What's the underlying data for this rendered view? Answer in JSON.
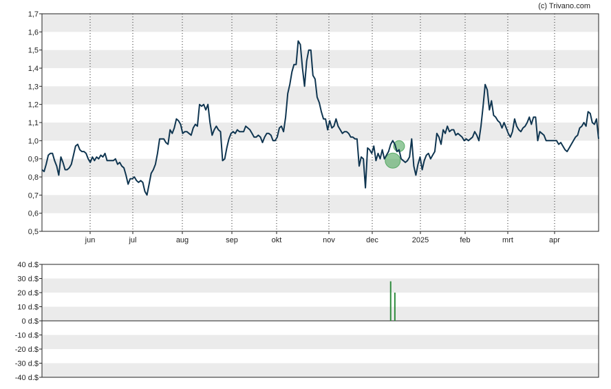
{
  "credit": "(c) Trivano.com",
  "colors": {
    "band": "#ebebeb",
    "line": "#0f3550",
    "marker": "#3f9e4f",
    "volume": "#2e8b3d",
    "axis": "#222222"
  },
  "chart_data": [
    {
      "type": "line",
      "x_tick_labels": [
        "jun",
        "jul",
        "aug",
        "sep",
        "okt",
        "nov",
        "dec",
        "2025",
        "feb",
        "mrt",
        "apr"
      ],
      "y_tick_labels": [
        "0,5",
        "0,6",
        "0,7",
        "0,8",
        "0,9",
        "1,0",
        "1,1",
        "1,2",
        "1,3",
        "1,4",
        "1,5",
        "1,6",
        "1,7"
      ],
      "ylim": [
        0.5,
        1.7
      ],
      "grid": "alternating horizontal bands, dotted vertical month lines",
      "markers": [
        {
          "x": 167,
          "y": 0.89,
          "size": "large"
        },
        {
          "x": 170,
          "y": 0.97,
          "size": "small"
        }
      ],
      "series": [
        {
          "values": [
            [
              0,
              0.84
            ],
            [
              1,
              0.83
            ],
            [
              2,
              0.87
            ],
            [
              3,
              0.92
            ],
            [
              4,
              0.93
            ],
            [
              5,
              0.93
            ],
            [
              6,
              0.89
            ],
            [
              7,
              0.86
            ],
            [
              8,
              0.81
            ],
            [
              9,
              0.91
            ],
            [
              10,
              0.88
            ],
            [
              11,
              0.84
            ],
            [
              12,
              0.84
            ],
            [
              13,
              0.85
            ],
            [
              14,
              0.87
            ],
            [
              15,
              0.92
            ],
            [
              16,
              0.97
            ],
            [
              17,
              0.98
            ],
            [
              18,
              0.95
            ],
            [
              19,
              0.94
            ],
            [
              20,
              0.94
            ],
            [
              21,
              0.93
            ],
            [
              22,
              0.9
            ],
            [
              23,
              0.88
            ],
            [
              24,
              0.91
            ],
            [
              25,
              0.89
            ],
            [
              26,
              0.91
            ],
            [
              27,
              0.9
            ],
            [
              28,
              0.92
            ],
            [
              29,
              0.91
            ],
            [
              30,
              0.93
            ],
            [
              31,
              0.89
            ],
            [
              32,
              0.89
            ],
            [
              33,
              0.89
            ],
            [
              34,
              0.89
            ],
            [
              35,
              0.9
            ],
            [
              36,
              0.87
            ],
            [
              37,
              0.88
            ],
            [
              38,
              0.86
            ],
            [
              39,
              0.85
            ],
            [
              40,
              0.81
            ],
            [
              41,
              0.76
            ],
            [
              42,
              0.79
            ],
            [
              43,
              0.79
            ],
            [
              44,
              0.8
            ],
            [
              45,
              0.78
            ],
            [
              46,
              0.77
            ],
            [
              47,
              0.78
            ],
            [
              48,
              0.77
            ],
            [
              49,
              0.72
            ],
            [
              50,
              0.7
            ],
            [
              51,
              0.76
            ],
            [
              52,
              0.82
            ],
            [
              53,
              0.84
            ],
            [
              54,
              0.87
            ],
            [
              55,
              0.93
            ],
            [
              56,
              1.01
            ],
            [
              57,
              1.01
            ],
            [
              58,
              1.01
            ],
            [
              59,
              0.99
            ],
            [
              60,
              0.98
            ],
            [
              61,
              1.06
            ],
            [
              62,
              1.04
            ],
            [
              63,
              1.07
            ],
            [
              64,
              1.12
            ],
            [
              65,
              1.11
            ],
            [
              66,
              1.09
            ],
            [
              67,
              1.04
            ],
            [
              68,
              1.05
            ],
            [
              69,
              1.05
            ],
            [
              70,
              1.04
            ],
            [
              71,
              1.03
            ],
            [
              72,
              1.07
            ],
            [
              73,
              1.09
            ],
            [
              74,
              1.08
            ],
            [
              75,
              1.2
            ],
            [
              76,
              1.19
            ],
            [
              77,
              1.2
            ],
            [
              78,
              1.17
            ],
            [
              79,
              1.2
            ],
            [
              80,
              1.1
            ],
            [
              81,
              1.03
            ],
            [
              82,
              1.06
            ],
            [
              83,
              1.08
            ],
            [
              84,
              1.06
            ],
            [
              85,
              1.05
            ],
            [
              86,
              0.89
            ],
            [
              87,
              0.9
            ],
            [
              88,
              0.96
            ],
            [
              89,
              1.01
            ],
            [
              90,
              1.04
            ],
            [
              91,
              1.05
            ],
            [
              92,
              1.04
            ],
            [
              93,
              1.06
            ],
            [
              94,
              1.05
            ],
            [
              95,
              1.05
            ],
            [
              96,
              1.05
            ],
            [
              97,
              1.08
            ],
            [
              98,
              1.07
            ],
            [
              99,
              1.06
            ],
            [
              100,
              1.04
            ],
            [
              101,
              1.02
            ],
            [
              102,
              1.02
            ],
            [
              103,
              1.03
            ],
            [
              104,
              1.02
            ],
            [
              105,
              0.99
            ],
            [
              106,
              1.02
            ],
            [
              107,
              1.04
            ],
            [
              108,
              1.04
            ],
            [
              109,
              1.03
            ],
            [
              110,
              1.0
            ],
            [
              111,
              1.0
            ],
            [
              112,
              1.02
            ],
            [
              113,
              1.07
            ],
            [
              114,
              1.08
            ],
            [
              115,
              1.05
            ],
            [
              116,
              1.13
            ],
            [
              117,
              1.26
            ],
            [
              118,
              1.31
            ],
            [
              119,
              1.38
            ],
            [
              120,
              1.42
            ],
            [
              121,
              1.42
            ],
            [
              122,
              1.55
            ],
            [
              123,
              1.53
            ],
            [
              124,
              1.4
            ],
            [
              125,
              1.3
            ],
            [
              126,
              1.44
            ],
            [
              127,
              1.5
            ],
            [
              128,
              1.5
            ],
            [
              129,
              1.36
            ],
            [
              130,
              1.34
            ],
            [
              131,
              1.24
            ],
            [
              132,
              1.21
            ],
            [
              133,
              1.16
            ],
            [
              134,
              1.12
            ],
            [
              135,
              1.12
            ],
            [
              136,
              1.06
            ],
            [
              137,
              1.11
            ],
            [
              138,
              1.07
            ],
            [
              139,
              1.08
            ],
            [
              140,
              1.12
            ],
            [
              141,
              1.08
            ],
            [
              142,
              1.06
            ],
            [
              143,
              1.04
            ],
            [
              144,
              1.05
            ],
            [
              145,
              1.05
            ],
            [
              146,
              1.04
            ],
            [
              147,
              1.02
            ],
            [
              148,
              1.02
            ],
            [
              149,
              1.01
            ],
            [
              150,
              1.01
            ],
            [
              151,
              0.86
            ],
            [
              152,
              0.91
            ],
            [
              153,
              0.9
            ],
            [
              154,
              0.74
            ],
            [
              155,
              0.96
            ],
            [
              156,
              0.95
            ],
            [
              157,
              0.93
            ],
            [
              158,
              0.97
            ],
            [
              159,
              0.89
            ],
            [
              160,
              0.93
            ],
            [
              161,
              0.9
            ],
            [
              162,
              0.95
            ],
            [
              163,
              0.9
            ],
            [
              164,
              0.92
            ],
            [
              165,
              0.94
            ],
            [
              166,
              0.98
            ],
            [
              167,
              1.0
            ],
            [
              168,
              0.98
            ],
            [
              169,
              0.94
            ],
            [
              170,
              0.95
            ],
            [
              171,
              0.9
            ],
            [
              172,
              0.89
            ],
            [
              173,
              0.88
            ],
            [
              174,
              0.89
            ],
            [
              175,
              0.91
            ],
            [
              176,
              1.01
            ],
            [
              177,
              0.86
            ],
            [
              178,
              0.81
            ],
            [
              179,
              0.87
            ],
            [
              180,
              0.91
            ],
            [
              181,
              0.84
            ],
            [
              182,
              0.89
            ],
            [
              183,
              0.92
            ],
            [
              184,
              0.93
            ],
            [
              185,
              0.9
            ],
            [
              186,
              0.92
            ],
            [
              187,
              0.94
            ],
            [
              188,
              1.04
            ],
            [
              189,
              1.02
            ],
            [
              190,
              0.98
            ],
            [
              191,
              1.06
            ],
            [
              192,
              1.04
            ],
            [
              193,
              1.08
            ],
            [
              194,
              1.05
            ],
            [
              195,
              1.06
            ],
            [
              196,
              1.06
            ],
            [
              197,
              1.03
            ],
            [
              198,
              1.04
            ],
            [
              199,
              1.03
            ],
            [
              200,
              1.02
            ],
            [
              201,
              1.0
            ],
            [
              202,
              1.01
            ],
            [
              203,
              1.0
            ],
            [
              204,
              1.01
            ],
            [
              205,
              1.02
            ],
            [
              206,
              1.05
            ],
            [
              207,
              1.03
            ],
            [
              208,
              1.0
            ],
            [
              209,
              1.08
            ],
            [
              210,
              1.19
            ],
            [
              211,
              1.31
            ],
            [
              212,
              1.28
            ],
            [
              213,
              1.17
            ],
            [
              214,
              1.22
            ],
            [
              215,
              1.14
            ],
            [
              216,
              1.13
            ],
            [
              217,
              1.11
            ],
            [
              218,
              1.1
            ],
            [
              219,
              1.07
            ],
            [
              220,
              1.1
            ],
            [
              221,
              1.07
            ],
            [
              222,
              1.04
            ],
            [
              223,
              1.02
            ],
            [
              224,
              1.05
            ],
            [
              225,
              1.12
            ],
            [
              226,
              1.08
            ],
            [
              227,
              1.06
            ],
            [
              228,
              1.05
            ],
            [
              229,
              1.07
            ],
            [
              230,
              1.08
            ],
            [
              231,
              1.1
            ],
            [
              232,
              1.13
            ],
            [
              233,
              1.09
            ],
            [
              234,
              1.13
            ],
            [
              235,
              1.13
            ],
            [
              236,
              1.0
            ],
            [
              237,
              1.05
            ],
            [
              238,
              1.04
            ],
            [
              239,
              1.03
            ],
            [
              240,
              1.0
            ],
            [
              241,
              1.0
            ],
            [
              242,
              1.0
            ],
            [
              243,
              1.0
            ],
            [
              244,
              1.0
            ],
            [
              245,
              1.0
            ],
            [
              246,
              0.98
            ],
            [
              247,
              0.99
            ],
            [
              248,
              0.97
            ],
            [
              249,
              0.95
            ],
            [
              250,
              0.94
            ],
            [
              251,
              0.96
            ],
            [
              252,
              0.98
            ],
            [
              253,
              1.0
            ],
            [
              254,
              1.02
            ],
            [
              255,
              1.03
            ],
            [
              256,
              1.07
            ],
            [
              257,
              1.08
            ],
            [
              258,
              1.1
            ],
            [
              259,
              1.08
            ],
            [
              260,
              1.16
            ],
            [
              261,
              1.15
            ],
            [
              262,
              1.1
            ],
            [
              263,
              1.09
            ],
            [
              264,
              1.12
            ],
            [
              265,
              1.01
            ]
          ]
        }
      ]
    },
    {
      "type": "bar",
      "y_tick_labels": [
        "40 d.$",
        "30 d.$",
        "20 d.$",
        "10 d.$",
        "0 d.$",
        "-10 d.$",
        "-20 d.$",
        "-30 d.$",
        "-40 d.$"
      ],
      "ylim": [
        -40,
        40
      ],
      "grid": "alternating horizontal bands",
      "bars": [
        {
          "x": 166,
          "value": 28
        },
        {
          "x": 168,
          "value": 20
        }
      ]
    }
  ]
}
